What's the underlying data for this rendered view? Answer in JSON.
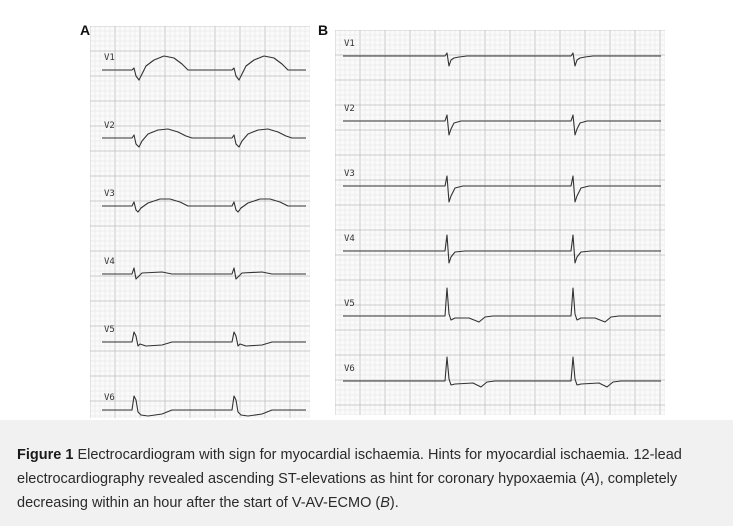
{
  "panels": [
    {
      "letter": "A",
      "leads": [
        "V1",
        "V2",
        "V3",
        "V4",
        "V5",
        "V6"
      ]
    },
    {
      "letter": "B",
      "leads": [
        "V1",
        "V2",
        "V3",
        "V4",
        "V5",
        "V6"
      ]
    }
  ],
  "caption": {
    "figure_label": "Figure 1",
    "text_part1": "Electrocardiogram with sign for myocardial ischaemia. Hints for myocardial ischaemia. 12-lead electrocardiography revealed ascending ST-elevations as hint for coronary hypoxaemia (",
    "ref_a": "A",
    "text_part2": "), completely decreasing within an hour after the start of V-AV-ECMO (",
    "ref_b": "B",
    "text_part3": ")."
  }
}
